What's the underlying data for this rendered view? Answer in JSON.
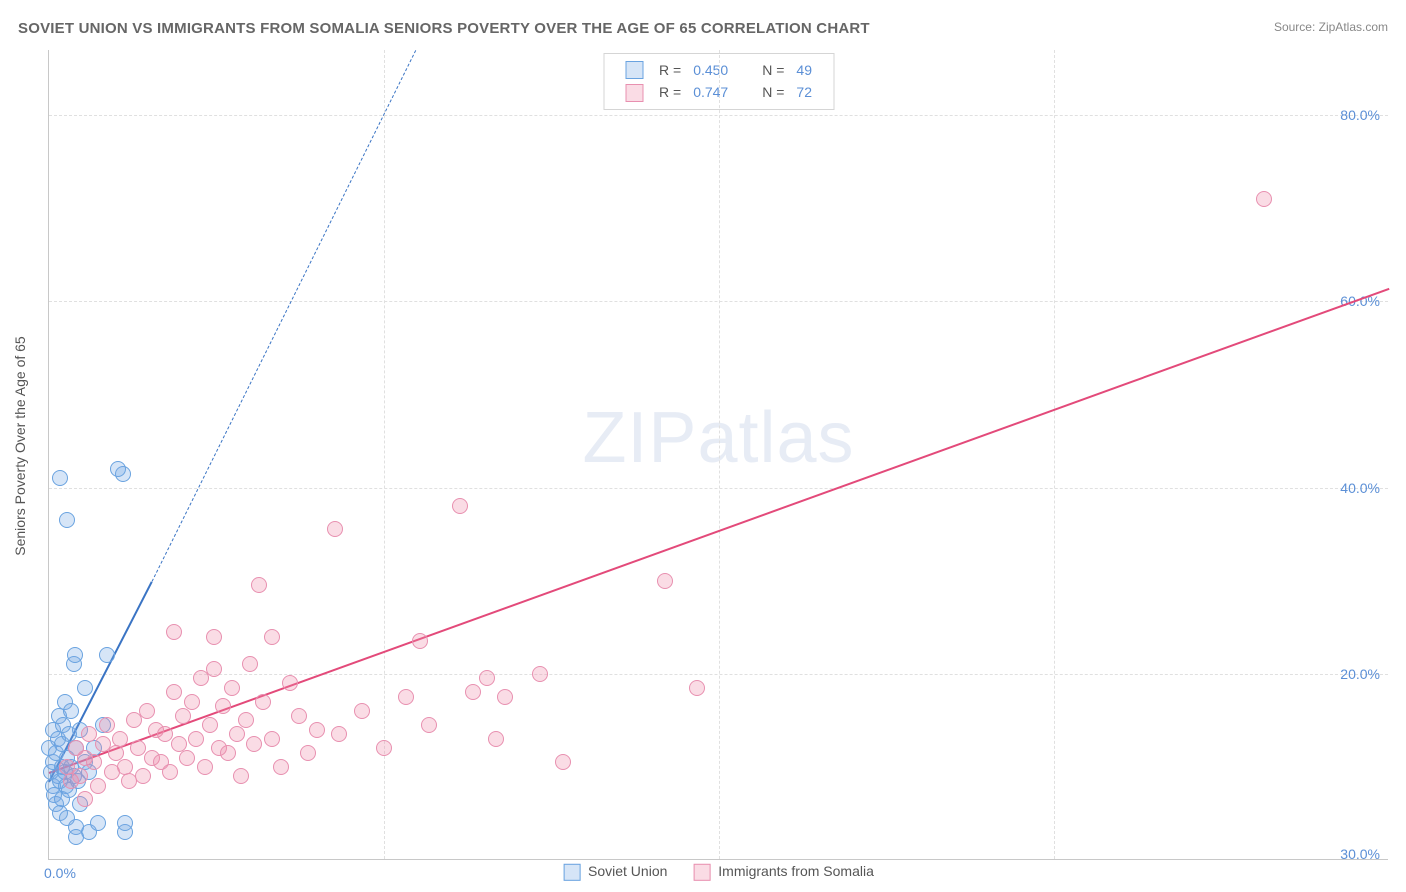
{
  "title": "SOVIET UNION VS IMMIGRANTS FROM SOMALIA SENIORS POVERTY OVER THE AGE OF 65 CORRELATION CHART",
  "source_prefix": "Source: ",
  "source_link": "ZipAtlas.com",
  "ylabel": "Seniors Poverty Over the Age of 65",
  "watermark_a": "ZIP",
  "watermark_b": "atlas",
  "chart": {
    "type": "scatter",
    "background_color": "#ffffff",
    "grid_color": "#e0e0e0",
    "axis_color": "#c8c8c8",
    "tick_color": "#5b8fd6",
    "xlim": [
      0,
      30
    ],
    "ylim": [
      0,
      87
    ],
    "x_ticks": [
      0,
      30
    ],
    "x_tick_labels": [
      "0.0%",
      "30.0%"
    ],
    "y_ticks": [
      20,
      40,
      60,
      80
    ],
    "y_tick_labels": [
      "20.0%",
      "40.0%",
      "60.0%",
      "80.0%"
    ],
    "x_gridlines_at": [
      7.5,
      15,
      22.5
    ],
    "marker_radius": 8,
    "marker_border_width": 1.4,
    "series": [
      {
        "id": "soviet",
        "label": "Soviet Union",
        "fill": "rgba(120,170,230,0.30)",
        "stroke": "#6aa3e0",
        "trend_color": "#3a74c4",
        "trend_from": [
          0,
          8.5
        ],
        "trend_solid_to": [
          2.3,
          30
        ],
        "trend_dashed_to": [
          8.2,
          87
        ],
        "R": "0.450",
        "N": "49",
        "points": [
          [
            0.0,
            12.0
          ],
          [
            0.05,
            9.5
          ],
          [
            0.08,
            8.0
          ],
          [
            0.1,
            10.5
          ],
          [
            0.1,
            14.0
          ],
          [
            0.12,
            7.0
          ],
          [
            0.15,
            11.5
          ],
          [
            0.15,
            6.0
          ],
          [
            0.2,
            9.0
          ],
          [
            0.2,
            13.0
          ],
          [
            0.22,
            15.5
          ],
          [
            0.25,
            8.5
          ],
          [
            0.25,
            5.0
          ],
          [
            0.28,
            10.0
          ],
          [
            0.3,
            12.5
          ],
          [
            0.3,
            6.5
          ],
          [
            0.32,
            14.5
          ],
          [
            0.35,
            9.5
          ],
          [
            0.35,
            17.0
          ],
          [
            0.38,
            8.0
          ],
          [
            0.4,
            11.0
          ],
          [
            0.4,
            4.5
          ],
          [
            0.45,
            13.5
          ],
          [
            0.45,
            7.5
          ],
          [
            0.5,
            10.0
          ],
          [
            0.5,
            16.0
          ],
          [
            0.55,
            9.0
          ],
          [
            0.55,
            21.0
          ],
          [
            0.58,
            22.0
          ],
          [
            0.6,
            12.0
          ],
          [
            0.6,
            3.5
          ],
          [
            0.65,
            8.5
          ],
          [
            0.7,
            14.0
          ],
          [
            0.7,
            6.0
          ],
          [
            0.8,
            10.5
          ],
          [
            0.8,
            18.5
          ],
          [
            0.9,
            9.5
          ],
          [
            0.9,
            3.0
          ],
          [
            1.0,
            12.0
          ],
          [
            1.1,
            4.0
          ],
          [
            1.2,
            14.5
          ],
          [
            1.3,
            22.0
          ],
          [
            0.4,
            36.5
          ],
          [
            0.25,
            41.0
          ],
          [
            1.65,
            41.5
          ],
          [
            1.55,
            42.0
          ],
          [
            1.7,
            3.0
          ],
          [
            1.7,
            4.0
          ],
          [
            0.6,
            2.5
          ]
        ]
      },
      {
        "id": "somalia",
        "label": "Immigrants from Somalia",
        "fill": "rgba(240,140,170,0.30)",
        "stroke": "#e890b0",
        "trend_color": "#e34a7a",
        "trend_from": [
          0,
          9.5
        ],
        "trend_solid_to": [
          30,
          61.5
        ],
        "R": "0.747",
        "N": "72",
        "points": [
          [
            0.4,
            10.0
          ],
          [
            0.5,
            8.5
          ],
          [
            0.6,
            12.0
          ],
          [
            0.7,
            9.0
          ],
          [
            0.8,
            11.0
          ],
          [
            0.9,
            13.5
          ],
          [
            1.0,
            10.5
          ],
          [
            1.1,
            8.0
          ],
          [
            1.2,
            12.5
          ],
          [
            1.3,
            14.5
          ],
          [
            1.4,
            9.5
          ],
          [
            1.5,
            11.5
          ],
          [
            1.6,
            13.0
          ],
          [
            1.7,
            10.0
          ],
          [
            1.8,
            8.5
          ],
          [
            1.9,
            15.0
          ],
          [
            2.0,
            12.0
          ],
          [
            2.1,
            9.0
          ],
          [
            2.2,
            16.0
          ],
          [
            2.3,
            11.0
          ],
          [
            2.4,
            14.0
          ],
          [
            2.5,
            10.5
          ],
          [
            2.6,
            13.5
          ],
          [
            2.7,
            9.5
          ],
          [
            2.8,
            18.0
          ],
          [
            2.8,
            24.5
          ],
          [
            2.9,
            12.5
          ],
          [
            3.0,
            15.5
          ],
          [
            3.1,
            11.0
          ],
          [
            3.2,
            17.0
          ],
          [
            3.3,
            13.0
          ],
          [
            3.4,
            19.5
          ],
          [
            3.5,
            10.0
          ],
          [
            3.6,
            14.5
          ],
          [
            3.7,
            20.5
          ],
          [
            3.7,
            24.0
          ],
          [
            3.8,
            12.0
          ],
          [
            3.9,
            16.5
          ],
          [
            4.0,
            11.5
          ],
          [
            4.1,
            18.5
          ],
          [
            4.2,
            13.5
          ],
          [
            4.3,
            9.0
          ],
          [
            4.4,
            15.0
          ],
          [
            4.5,
            21.0
          ],
          [
            4.6,
            12.5
          ],
          [
            4.8,
            17.0
          ],
          [
            5.0,
            13.0
          ],
          [
            5.0,
            24.0
          ],
          [
            5.2,
            10.0
          ],
          [
            5.4,
            19.0
          ],
          [
            5.6,
            15.5
          ],
          [
            5.8,
            11.5
          ],
          [
            6.0,
            14.0
          ],
          [
            4.7,
            29.5
          ],
          [
            6.5,
            13.5
          ],
          [
            6.4,
            35.5
          ],
          [
            7.0,
            16.0
          ],
          [
            7.5,
            12.0
          ],
          [
            8.0,
            17.5
          ],
          [
            8.3,
            23.5
          ],
          [
            8.5,
            14.5
          ],
          [
            9.2,
            38.0
          ],
          [
            9.5,
            18.0
          ],
          [
            10.0,
            13.0
          ],
          [
            9.8,
            19.5
          ],
          [
            10.2,
            17.5
          ],
          [
            11.0,
            20.0
          ],
          [
            11.5,
            10.5
          ],
          [
            13.8,
            30.0
          ],
          [
            14.5,
            18.5
          ],
          [
            27.2,
            71.0
          ],
          [
            0.8,
            6.5
          ]
        ]
      }
    ]
  },
  "legend_top": {
    "r_label": "R =",
    "n_label": "N ="
  }
}
